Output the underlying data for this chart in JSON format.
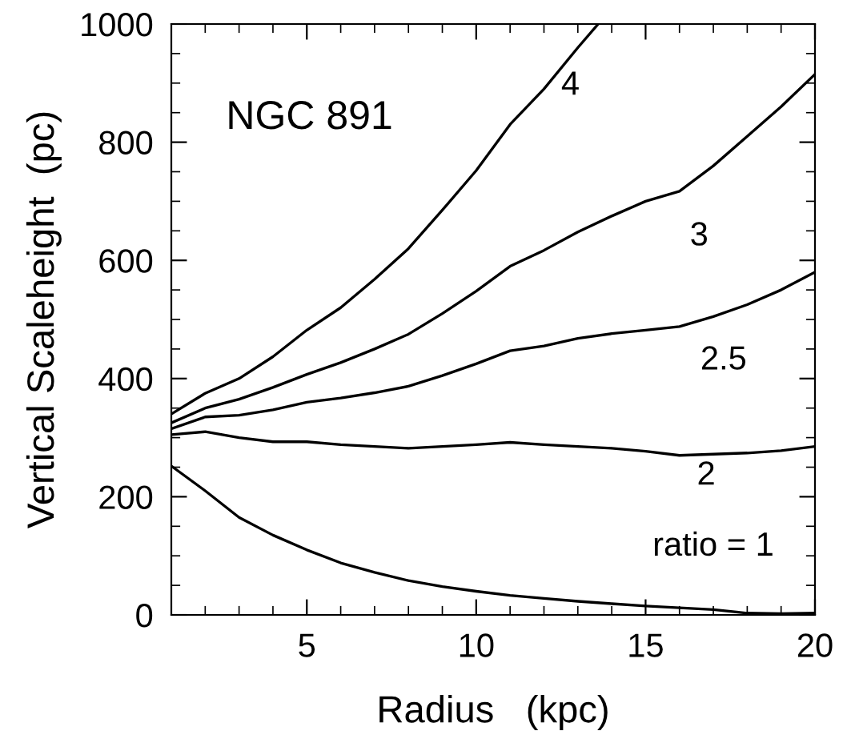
{
  "chart_data": {
    "type": "line",
    "xlabel": "Radius   (kpc)",
    "ylabel": "Vertical Scaleheight  (pc)",
    "x": [
      1,
      2,
      3,
      4,
      5,
      6,
      7,
      8,
      9,
      10,
      11,
      12,
      13,
      14,
      15,
      16,
      17,
      18,
      19,
      20
    ],
    "xlim": [
      1,
      20
    ],
    "xticks": [
      5,
      10,
      15,
      20
    ],
    "ylim": [
      0,
      1000
    ],
    "yticks": [
      0,
      200,
      400,
      600,
      800,
      1000
    ],
    "grid": false,
    "legend": false,
    "marker": "none",
    "line_style": "solid",
    "series": [
      {
        "color": "#000000",
        "values": [
          252,
          210,
          165,
          135,
          110,
          88,
          72,
          58,
          48,
          40,
          33,
          28,
          23,
          19,
          15,
          12,
          9,
          3,
          2,
          3
        ]
      },
      {
        "color": "#000000",
        "values": [
          305,
          310,
          300,
          293,
          293,
          288,
          285,
          282,
          285,
          288,
          292,
          288,
          285,
          282,
          277,
          270,
          272,
          274,
          278,
          285
        ]
      },
      {
        "color": "#000000",
        "values": [
          315,
          335,
          338,
          347,
          360,
          367,
          376,
          387,
          405,
          425,
          447,
          455,
          468,
          476,
          482,
          488,
          505,
          525,
          550,
          580
        ]
      },
      {
        "color": "#000000",
        "values": [
          325,
          350,
          365,
          385,
          407,
          427,
          450,
          475,
          510,
          548,
          590,
          617,
          648,
          675,
          700,
          717,
          760,
          810,
          860,
          915
        ]
      },
      {
        "color": "#000000",
        "x": [
          1,
          2,
          3,
          4,
          5,
          6,
          7,
          8,
          9,
          10,
          11,
          12,
          13,
          13.6
        ],
        "values": [
          340,
          375,
          400,
          437,
          482,
          520,
          568,
          620,
          685,
          752,
          830,
          890,
          960,
          1000
        ]
      }
    ],
    "annotations": [
      "NGC 891",
      "ratio = 1",
      "2",
      "2.5",
      "3",
      "4"
    ]
  }
}
